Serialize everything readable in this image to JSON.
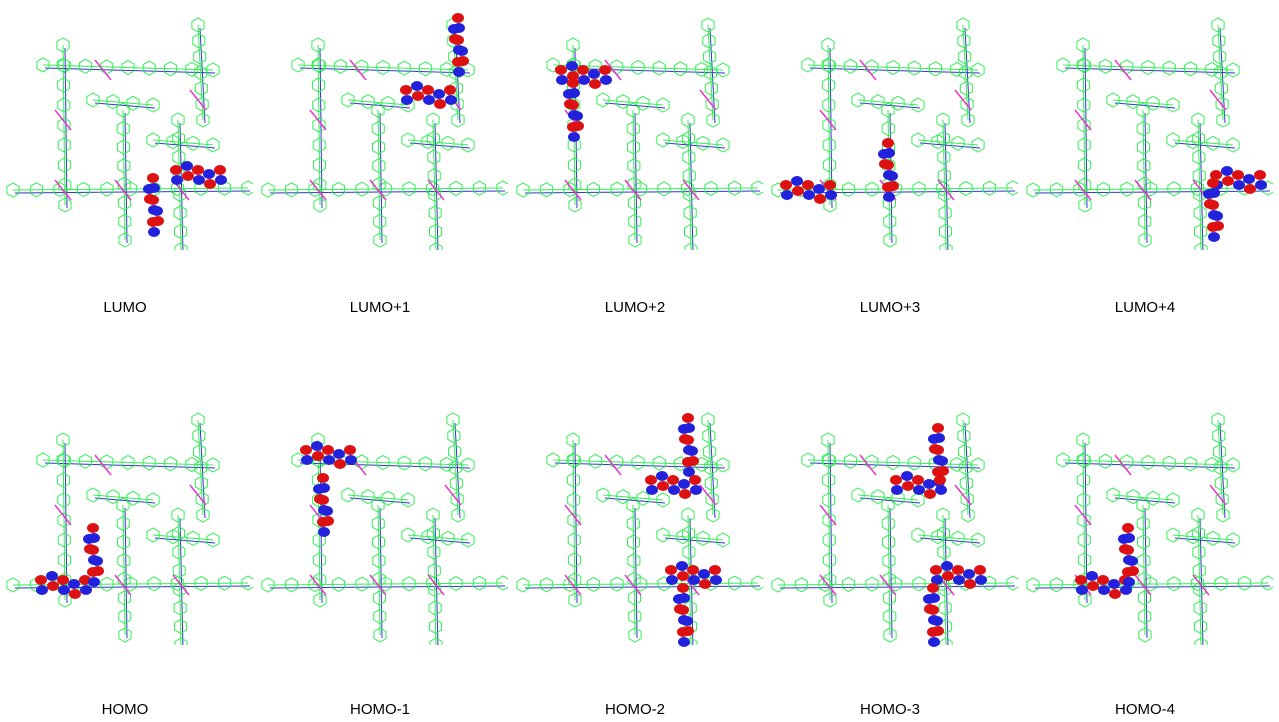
{
  "panels": [
    {
      "label": "LUMO"
    },
    {
      "label": "LUMO+1"
    },
    {
      "label": "LUMO+2"
    },
    {
      "label": "LUMO+3"
    },
    {
      "label": "LUMO+4"
    },
    {
      "label": "HOMO"
    },
    {
      "label": "HOMO-1"
    },
    {
      "label": "HOMO-2"
    },
    {
      "label": "HOMO-3"
    },
    {
      "label": "HOMO-4"
    }
  ]
}
